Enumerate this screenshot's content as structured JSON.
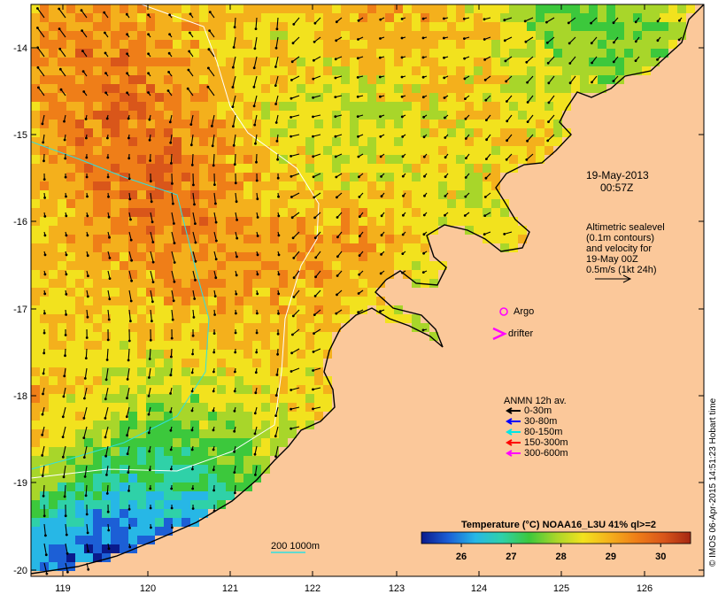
{
  "date_line": "19-May-2013",
  "time_line": "00:57Z",
  "altimetry": {
    "line1": "Altimetric sealevel",
    "line2": "(0.1m contours)",
    "line3": "and velocity for",
    "line4": "19-May 00Z",
    "line5": "0.5m/s (1kt 24h)"
  },
  "legend": {
    "argo": "Argo",
    "drifter": "drifter",
    "anmn_title": "ANMN 12h av.",
    "depths": [
      {
        "label": "0-30m",
        "color": "#000000"
      },
      {
        "label": "30-80m",
        "color": "#0000ff"
      },
      {
        "label": "80-150m",
        "color": "#00e5e5"
      },
      {
        "label": "150-300m",
        "color": "#ff0000"
      },
      {
        "label": "300-600m",
        "color": "#ff00ff"
      }
    ],
    "isobath_label": "200  1000m"
  },
  "colorbar": {
    "title": "Temperature (°C) NOAA16_L3U 41% ql>=2",
    "ticks": [
      26,
      27,
      28,
      29,
      30
    ],
    "range": [
      25.2,
      30.6
    ],
    "colors": [
      "#0a1a8c",
      "#1c5fd6",
      "#27b7e6",
      "#2fd1a8",
      "#3cc83c",
      "#a8d62a",
      "#f2e21e",
      "#f4b01c",
      "#ef7e18",
      "#d9561a",
      "#a52712"
    ]
  },
  "axes": {
    "x_ticks": [
      "119",
      "120",
      "121",
      "122",
      "123",
      "124",
      "125",
      "126"
    ],
    "y_ticks": [
      "-14",
      "-15",
      "-16",
      "-17",
      "-18",
      "-19",
      "-20"
    ]
  },
  "colors": {
    "land": "#fbc89a",
    "coast": "#000000",
    "argo": "#ff00ff",
    "isobath_200": "#ffffff",
    "isobath_1000": "#2fe0e0"
  },
  "credit": "© IMOS 06-Apr-2015 14:51:23 Hobart time"
}
